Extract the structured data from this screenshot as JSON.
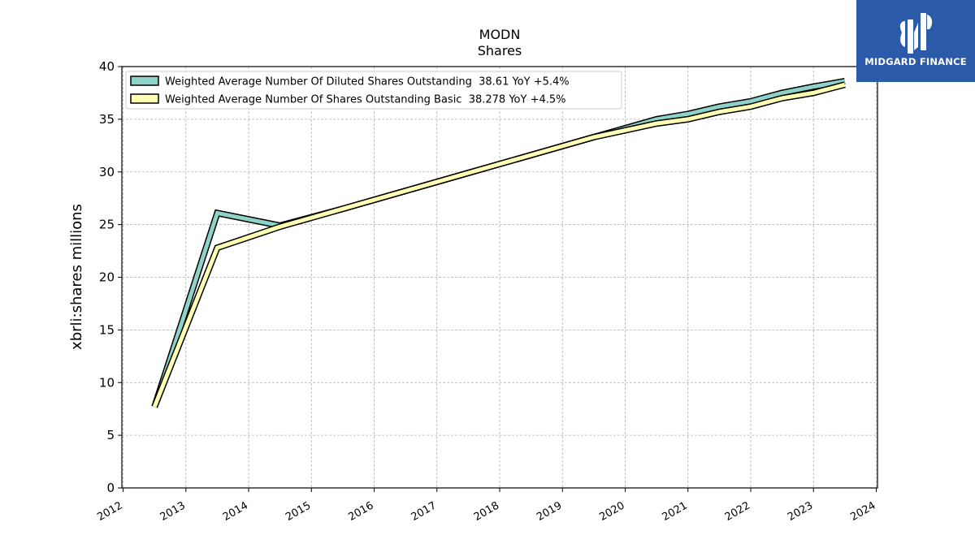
{
  "chart_data": {
    "type": "line",
    "title": "MODN",
    "subtitle": "Shares",
    "xlabel": "",
    "ylabel": "xbrli:shares millions",
    "xlim": [
      2011.98,
      2024.02
    ],
    "ylim": [
      0,
      40
    ],
    "x_ticks": [
      "2012",
      "2013",
      "2014",
      "2015",
      "2016",
      "2017",
      "2018",
      "2019",
      "2020",
      "2021",
      "2022",
      "2023",
      "2024"
    ],
    "y_ticks": [
      "0",
      "5",
      "10",
      "15",
      "20",
      "25",
      "30",
      "35",
      "40"
    ],
    "grid": true,
    "legend_position": "top-left",
    "series": [
      {
        "name": "Weighted Average Number Of Diluted Shares Outstanding  38.61 YoY +5.4%",
        "color": "#8dd3c7",
        "x": [
          2012.5,
          2013.5,
          2014.5,
          2015.5,
          2016.5,
          2017.5,
          2018.5,
          2019.5,
          2020.5,
          2021.0,
          2021.5,
          2022.0,
          2022.25,
          2022.5,
          2023.0,
          2023.5
        ],
        "values": [
          7.7,
          26.1,
          24.9,
          26.5,
          28.2,
          29.9,
          31.6,
          33.3,
          35.0,
          35.5,
          36.2,
          36.7,
          37.1,
          37.5,
          38.1,
          38.61
        ]
      },
      {
        "name": "Weighted Average Number Of Shares Outstanding Basic  38.278 YoY +4.5%",
        "color": "#ffffb3",
        "x": [
          2012.5,
          2013.5,
          2014.5,
          2015.5,
          2016.5,
          2017.5,
          2018.5,
          2019.5,
          2020.5,
          2021.0,
          2021.5,
          2022.0,
          2022.25,
          2022.5,
          2023.0,
          2023.5
        ],
        "values": [
          7.7,
          22.8,
          24.8,
          26.5,
          28.2,
          29.9,
          31.6,
          33.3,
          34.6,
          35.0,
          35.7,
          36.2,
          36.6,
          37.0,
          37.5,
          38.278
        ]
      }
    ]
  },
  "logo": {
    "text": "MIDGARD FINANCE"
  }
}
